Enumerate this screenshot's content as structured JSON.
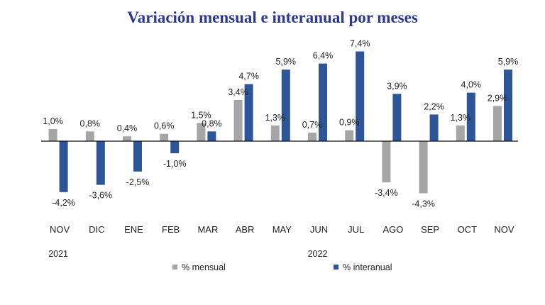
{
  "chart_data": {
    "type": "bar",
    "title": "Variación mensual e interanual por meses",
    "categories": [
      "NOV",
      "DIC",
      "ENE",
      "FEB",
      "MAR",
      "ABR",
      "MAY",
      "JUN",
      "JUL",
      "AGO",
      "SEP",
      "OCT",
      "NOV"
    ],
    "year_labels": [
      {
        "label": "2021",
        "category_index": 0
      },
      {
        "label": "2022",
        "category_index": 7
      }
    ],
    "series": [
      {
        "name": "% mensual",
        "color": "#a6a6a6",
        "values": [
          1.0,
          0.8,
          0.4,
          0.6,
          1.5,
          3.4,
          1.3,
          0.7,
          0.9,
          -3.4,
          -4.3,
          1.3,
          2.9
        ],
        "labels": [
          "1,0%",
          "0,8%",
          "0,4%",
          "0,6%",
          "1,5%",
          "3,4%",
          "1,3%",
          "0,7%",
          "0,9%",
          "-3,4%",
          "-4,3%",
          "1,3%",
          "2,9%"
        ]
      },
      {
        "name": "% interanual",
        "color": "#2e5597",
        "values": [
          -4.2,
          -3.6,
          -2.5,
          -1.0,
          0.8,
          4.7,
          5.9,
          6.4,
          7.4,
          3.9,
          2.2,
          4.0,
          5.9
        ],
        "labels": [
          "-4,2%",
          "-3,6%",
          "-2,5%",
          "-1,0%",
          "0,8%",
          "4,7%",
          "5,9%",
          "6,4%",
          "7,4%",
          "3,9%",
          "2,2%",
          "4,0%",
          "5,9%"
        ]
      }
    ],
    "ylim": [
      -5,
      8
    ],
    "xlabel": "",
    "ylabel": "",
    "grid": false,
    "legend_position": "bottom"
  }
}
